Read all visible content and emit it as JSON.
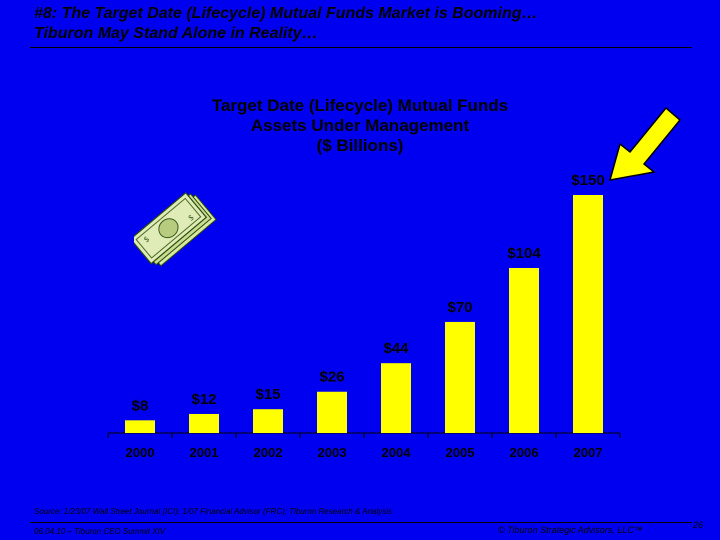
{
  "slide": {
    "title_line1": "#8: The Target Date (Lifecycle) Mutual Funds Market is Booming…",
    "title_line2": "Tiburon May Stand Alone in Reality…"
  },
  "chart_data": {
    "type": "bar",
    "title_lines": [
      "Target Date (Lifecycle) Mutual Funds",
      "Assets Under Management",
      "($ Billions)"
    ],
    "categories": [
      "2000",
      "2001",
      "2002",
      "2003",
      "2004",
      "2005",
      "2006",
      "2007"
    ],
    "values": [
      8,
      12,
      15,
      26,
      44,
      70,
      104,
      150
    ],
    "value_labels": [
      "$8",
      "$12",
      "$15",
      "$26",
      "$44",
      "$70",
      "$104",
      "$150"
    ],
    "xlabel": "",
    "ylabel": "",
    "ylim": [
      0,
      150
    ],
    "grid": false,
    "bar_color": "#FFFF00",
    "background_color": "#0000F0"
  },
  "decorations": {
    "money_icon": "money-stack-icon",
    "arrow_icon": "yellow-arrow-icon"
  },
  "source_text": "Source: 1/23/07 Wall Street Journal (ICI); 1/07 Financial Advisor (FRC); Tiburon Research & Analysis",
  "footer": {
    "left": "06.04.10 – Tiburon CEO Summit XIV",
    "right": "© Tiburon Strategic Advisors, LLC™",
    "page": "26"
  }
}
